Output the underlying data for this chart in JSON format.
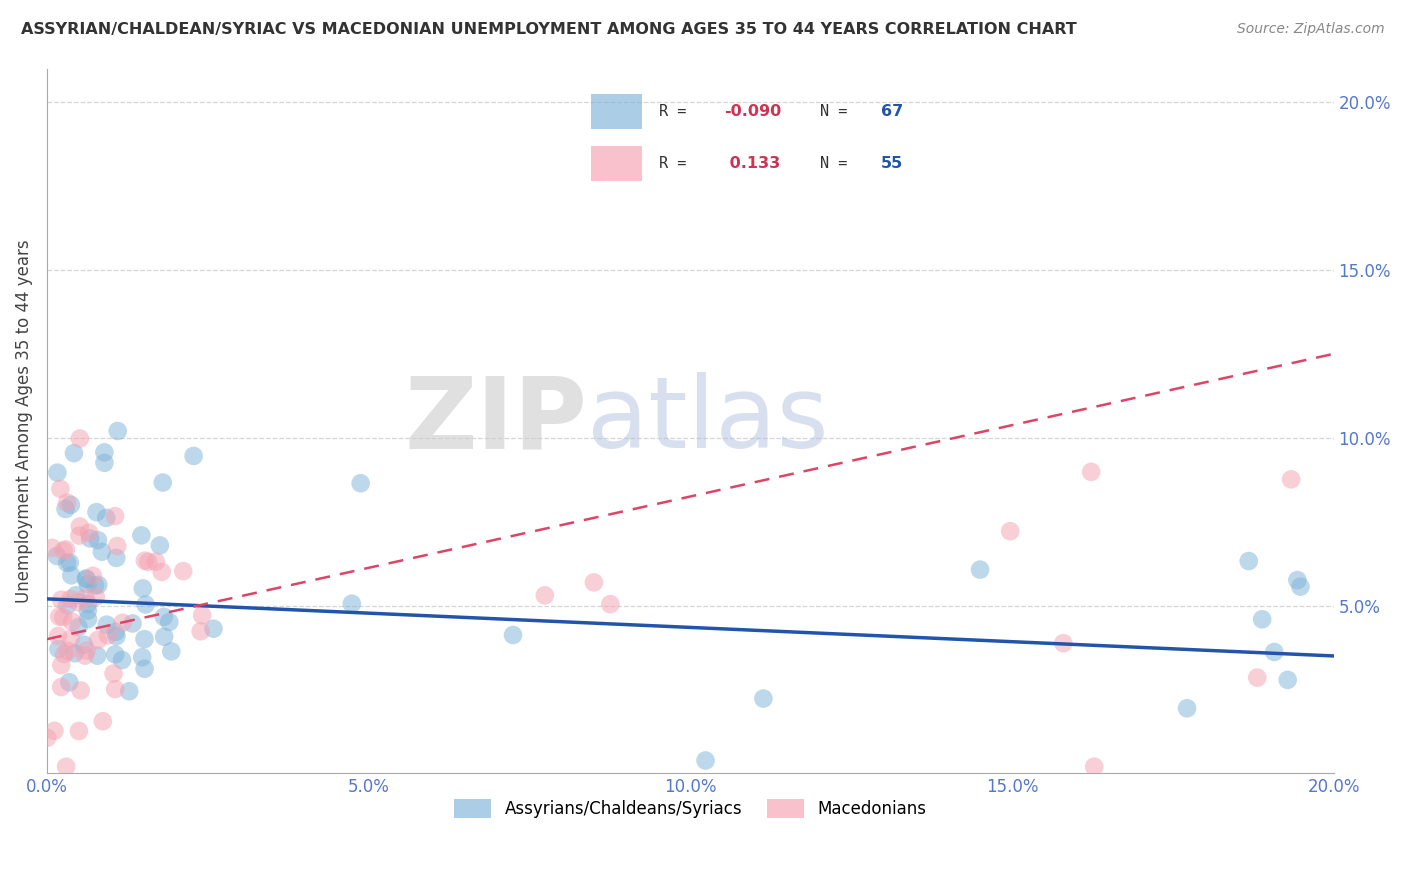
{
  "title": "ASSYRIAN/CHALDEAN/SYRIAC VS MACEDONIAN UNEMPLOYMENT AMONG AGES 35 TO 44 YEARS CORRELATION CHART",
  "source": "Source: ZipAtlas.com",
  "ylabel": "Unemployment Among Ages 35 to 44 years",
  "xlim": [
    0.0,
    0.2
  ],
  "ylim": [
    0.0,
    0.21
  ],
  "xtick_vals": [
    0.0,
    0.05,
    0.1,
    0.15,
    0.2
  ],
  "ytick_vals": [
    0.05,
    0.1,
    0.15,
    0.2
  ],
  "xticklabels": [
    "0.0%",
    "5.0%",
    "10.0%",
    "15.0%",
    "20.0%"
  ],
  "yticklabels": [
    "5.0%",
    "10.0%",
    "15.0%",
    "20.0%"
  ],
  "blue_color": "#7EB3D8",
  "pink_color": "#F5A0B0",
  "blue_line_color": "#2255AA",
  "pink_line_color": "#DD4466",
  "tick_color": "#5577CC",
  "watermark_zip": "ZIP",
  "watermark_atlas": "atlas",
  "background_color": "#FFFFFF",
  "grid_color": "#CCCCCC",
  "blue_trend_start_y": 0.052,
  "blue_trend_end_y": 0.035,
  "pink_trend_start_y": 0.04,
  "pink_trend_end_y": 0.125
}
